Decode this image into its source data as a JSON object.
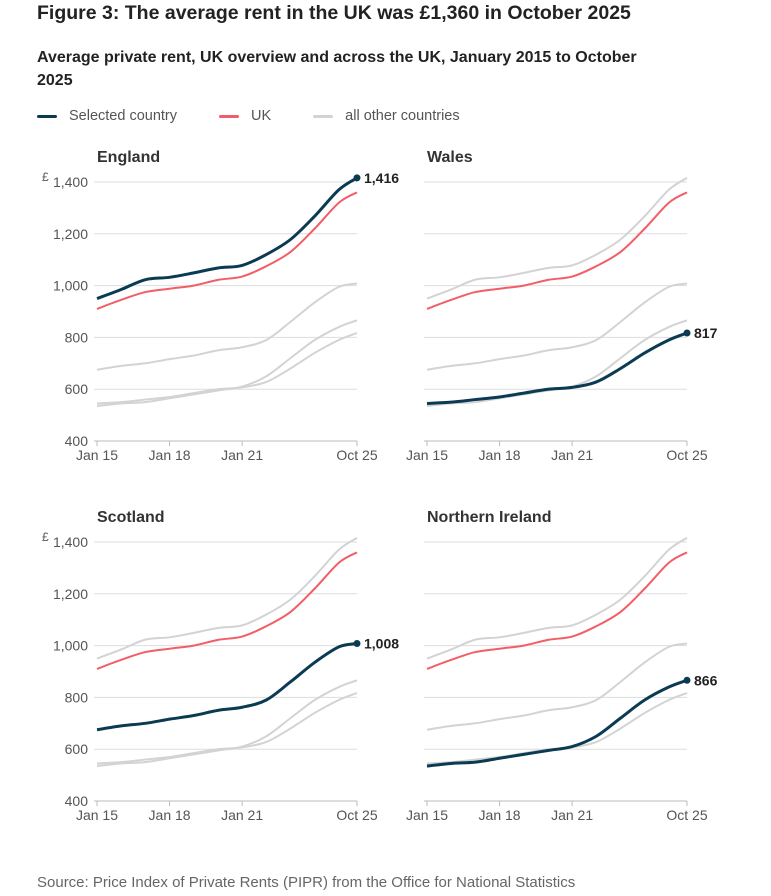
{
  "title": "Figure 3: The average rent in the UK was £1,360 in October 2025",
  "subtitle": "Average private rent, UK overview and across the UK, January 2015 to October 2025",
  "legend": [
    {
      "label": "Selected country",
      "color": "#0b3a53"
    },
    {
      "label": "UK",
      "color": "#f15e66"
    },
    {
      "label": "all other countries",
      "color": "#d3d3d3"
    }
  ],
  "source": "Source: Price Index of Private Rents (PIPR) from the Office for National Statistics",
  "chart_data": {
    "type": "line",
    "currency_symbol": "£",
    "x": [
      2015,
      2016,
      2017,
      2018,
      2019,
      2020,
      2021,
      2022,
      2023,
      2024,
      2025,
      2025.75
    ],
    "x_ticks": [
      {
        "value": 2015,
        "label": "Jan 15"
      },
      {
        "value": 2018,
        "label": "Jan 18"
      },
      {
        "value": 2021,
        "label": "Jan 21"
      },
      {
        "value": 2025.75,
        "label": "Oct 25"
      }
    ],
    "y_ticks": [
      400,
      600,
      800,
      1000,
      1200,
      1400
    ],
    "y_tick_labels": [
      "400",
      "600",
      "800",
      "1,000",
      "1,200",
      "1,400"
    ],
    "ylim": [
      400,
      1400
    ],
    "series": {
      "UK": [
        910,
        945,
        975,
        988,
        1000,
        1022,
        1035,
        1075,
        1130,
        1220,
        1320,
        1360
      ],
      "England": [
        950,
        985,
        1023,
        1032,
        1049,
        1068,
        1078,
        1120,
        1178,
        1268,
        1370,
        1416
      ],
      "Wales": [
        545,
        550,
        560,
        570,
        585,
        600,
        607,
        628,
        680,
        740,
        790,
        817
      ],
      "Scotland": [
        675,
        690,
        700,
        716,
        730,
        750,
        762,
        790,
        860,
        935,
        995,
        1008
      ],
      "Northern Ireland": [
        535,
        545,
        550,
        565,
        580,
        595,
        610,
        650,
        720,
        790,
        840,
        866
      ]
    },
    "panels": [
      {
        "title": "England",
        "country": "England",
        "end_label": "1,416"
      },
      {
        "title": "Wales",
        "country": "Wales",
        "end_label": "817"
      },
      {
        "title": "Scotland",
        "country": "Scotland",
        "end_label": "1,008"
      },
      {
        "title": "Northern Ireland",
        "country": "Northern Ireland",
        "end_label": "866"
      }
    ]
  }
}
